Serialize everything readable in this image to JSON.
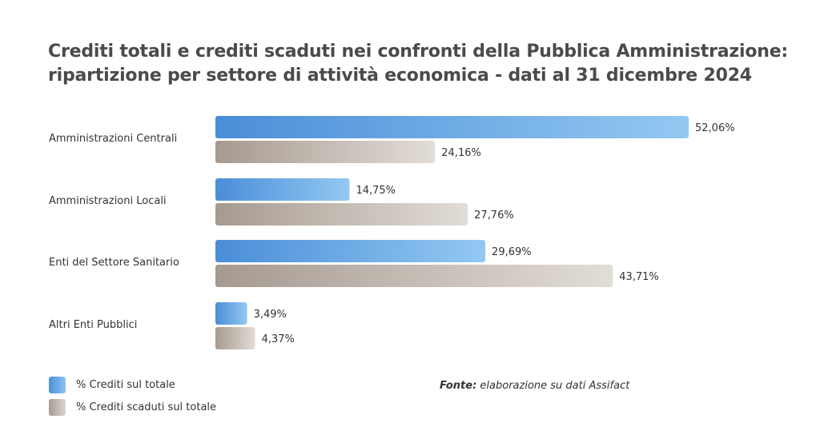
{
  "chart_data": {
    "type": "bar",
    "orientation": "horizontal",
    "title_lines": [
      "Crediti totali e crediti scaduti nei confronti della Pubblica Amministrazione:",
      "ripartizione per settore di attività economica - dati al 31 dicembre 2024"
    ],
    "categories": [
      "Amministrazioni Centrali",
      "Amministrazioni Locali",
      "Enti del Settore Sanitario",
      "Altri Enti Pubblici"
    ],
    "series": [
      {
        "name": "% Crediti sul totale",
        "values": [
          52.06,
          14.75,
          29.69,
          3.49
        ],
        "labels": [
          "52,06%",
          "14,75%",
          "29,69%",
          "3,49%"
        ],
        "color_start": "#4a8ed8",
        "color_end": "#93c8f1"
      },
      {
        "name": "% Crediti scaduti sul totale",
        "values": [
          24.16,
          27.76,
          43.71,
          4.37
        ],
        "labels": [
          "24,16%",
          "27,76%",
          "43,71%",
          "4,37%"
        ],
        "color_start": "#a69a90",
        "color_end": "#e2ddd7"
      }
    ],
    "xlim": [
      0,
      52.06
    ],
    "grid": false,
    "legend_position": "bottom-left"
  },
  "source": {
    "prefix": "Fonte:",
    "text": " elaborazione su dati Assifact"
  }
}
